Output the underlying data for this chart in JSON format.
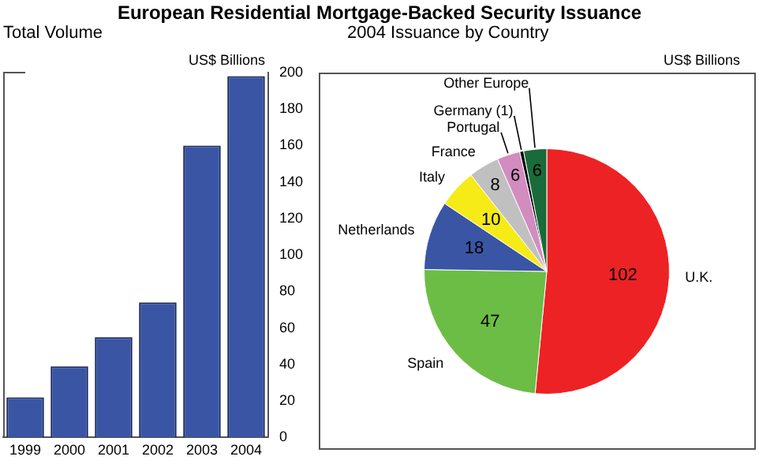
{
  "chart_data": [
    {
      "type": "bar",
      "title": "European Residential Mortgage-Backed Security Issuance",
      "subtitle": "Total Volume",
      "ylabel": "US$ Billions",
      "categories": [
        "1999",
        "2000",
        "2001",
        "2002",
        "2003",
        "2004"
      ],
      "values": [
        22,
        39,
        55,
        74,
        160,
        198
      ],
      "color": "#3a55a4",
      "ylim": [
        0,
        200
      ],
      "yticks": [
        0,
        20,
        40,
        60,
        80,
        100,
        120,
        140,
        160,
        180,
        200
      ],
      "grid": false,
      "legend": false
    },
    {
      "type": "pie",
      "title": "2004 Issuance by Country",
      "annotations": [
        "US$ Billions"
      ],
      "categories": [
        "U.K.",
        "Spain",
        "Netherlands",
        "Italy",
        "France",
        "Portugal",
        "Germany (1)",
        "Other Europe"
      ],
      "values": [
        102,
        47,
        18,
        10,
        8,
        6,
        1,
        6
      ],
      "colors": [
        "#ed2224",
        "#6cbd45",
        "#3a55a4",
        "#f6eb16",
        "#c0c0c0",
        "#d28cbf",
        "#000000",
        "#1a6b3a"
      ],
      "value_labels": [
        "102",
        "47",
        "18",
        "10",
        "8",
        "6",
        null,
        "6"
      ],
      "legend": false
    }
  ]
}
